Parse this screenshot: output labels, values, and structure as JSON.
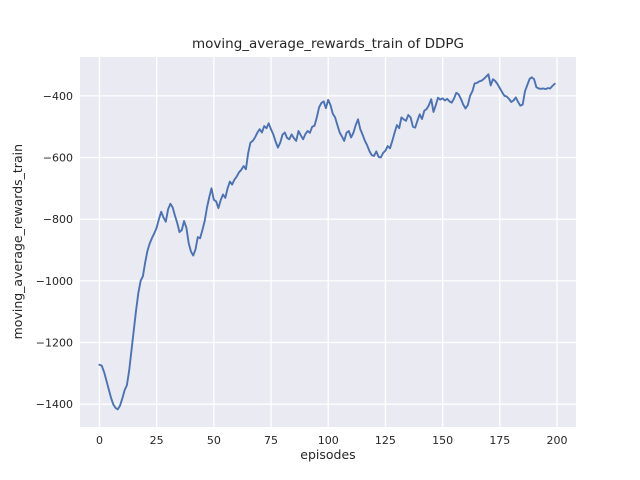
{
  "chart_data": {
    "type": "line",
    "title": "moving_average_rewards_train of DDPG",
    "xlabel": "episodes",
    "ylabel": "moving_average_rewards_train",
    "legend_position": "none",
    "grid": true,
    "x_ticks": [
      0,
      25,
      50,
      75,
      100,
      125,
      150,
      175,
      200
    ],
    "y_ticks": [
      -400,
      -600,
      -800,
      -1000,
      -1200,
      -1400
    ],
    "xlim": [
      -8.5,
      208.3
    ],
    "ylim": [
      -1474,
      -274
    ],
    "colors": {
      "line": "#4C72B0",
      "plot_bg": "#EAEAF2",
      "grid": "#FFFFFF",
      "text": "#262626",
      "figure_bg": "#FFFFFF"
    },
    "series": [
      {
        "name": "moving_average_rewards_train",
        "x0": 0,
        "dx": 1,
        "values": [
          -1272,
          -1275,
          -1295,
          -1322,
          -1350,
          -1378,
          -1400,
          -1412,
          -1417,
          -1405,
          -1382,
          -1355,
          -1338,
          -1290,
          -1225,
          -1160,
          -1095,
          -1040,
          -1000,
          -985,
          -940,
          -902,
          -878,
          -860,
          -845,
          -828,
          -800,
          -776,
          -795,
          -808,
          -768,
          -750,
          -762,
          -788,
          -812,
          -842,
          -835,
          -806,
          -828,
          -878,
          -905,
          -918,
          -898,
          -858,
          -862,
          -835,
          -806,
          -762,
          -728,
          -700,
          -737,
          -742,
          -764,
          -738,
          -720,
          -731,
          -700,
          -678,
          -688,
          -672,
          -662,
          -648,
          -640,
          -628,
          -638,
          -585,
          -552,
          -546,
          -535,
          -520,
          -508,
          -519,
          -498,
          -505,
          -489,
          -508,
          -525,
          -548,
          -568,
          -552,
          -526,
          -519,
          -536,
          -541,
          -525,
          -537,
          -546,
          -514,
          -528,
          -541,
          -524,
          -514,
          -520,
          -500,
          -497,
          -470,
          -437,
          -423,
          -418,
          -440,
          -413,
          -430,
          -458,
          -470,
          -495,
          -519,
          -532,
          -546,
          -520,
          -514,
          -535,
          -520,
          -495,
          -476,
          -508,
          -525,
          -545,
          -560,
          -579,
          -592,
          -595,
          -580,
          -598,
          -600,
          -585,
          -578,
          -563,
          -570,
          -546,
          -520,
          -495,
          -505,
          -470,
          -476,
          -481,
          -462,
          -470,
          -500,
          -503,
          -480,
          -460,
          -475,
          -448,
          -443,
          -430,
          -411,
          -452,
          -430,
          -406,
          -412,
          -408,
          -415,
          -410,
          -418,
          -422,
          -408,
          -390,
          -395,
          -410,
          -428,
          -441,
          -430,
          -400,
          -385,
          -360,
          -358,
          -353,
          -351,
          -345,
          -338,
          -330,
          -366,
          -346,
          -352,
          -362,
          -375,
          -388,
          -400,
          -402,
          -410,
          -420,
          -415,
          -405,
          -420,
          -432,
          -428,
          -385,
          -365,
          -345,
          -340,
          -346,
          -372,
          -376,
          -377,
          -376,
          -378,
          -375,
          -376,
          -368,
          -361
        ]
      }
    ]
  }
}
